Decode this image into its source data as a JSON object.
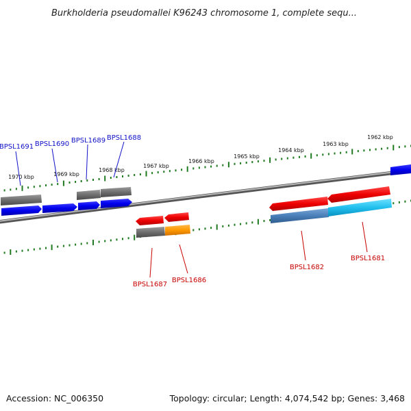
{
  "header": {
    "title": "Burkholderia pseudomallei K96243 chromosome 1, complete sequ..."
  },
  "footer": {
    "accession": "Accession: NC_006350",
    "summary": "Topology: circular; Length: 4,074,542 bp; Genes: 3,468"
  },
  "colors": {
    "background": "#ffffff",
    "backbone": "#8a8a8a",
    "tick": "#1f7a1f",
    "gene_blue": "#0000ee",
    "gene_gray": "#6e6e6e",
    "gene_red": "#ee0000",
    "gene_orange": "#ff9900",
    "gene_steelblue": "#4a7fb8",
    "gene_cyan": "#22c0ee",
    "label_blue": "#1010c8",
    "label_red": "#c80000"
  },
  "ruler_labels": [
    "1970 kbp",
    "1969 kbp",
    "1968 kbp",
    "1967 kbp",
    "1966 kbp",
    "1965 kbp",
    "1964 kbp",
    "1963 kbp",
    "1962 kbp"
  ],
  "gene_labels": {
    "top": [
      "BPSL1691",
      "BPSL1690",
      "BPSL1689",
      "BPSL1688"
    ],
    "bottom": [
      "BPSL1687",
      "BPSL1686",
      "BPSL1682",
      "BPSL1681"
    ]
  }
}
